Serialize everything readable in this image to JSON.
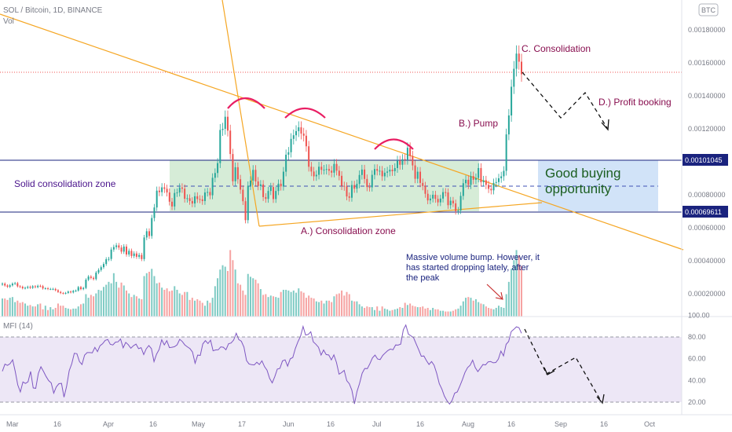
{
  "header": {
    "symbol": "SOL / Bitcoin, 1D, BINANCE",
    "volume_label": "Vol",
    "currency_badge": "BTC"
  },
  "mfi_panel": {
    "label": "MFI (14)"
  },
  "colors": {
    "up": "#26a69a",
    "down": "#ef5350",
    "vol_up": "#7fcbc4",
    "vol_down": "#f6a3a2",
    "zone_fill": "#c8e6c9",
    "buy_fill": "#cfe2f8",
    "trend": "#f5a623",
    "annotation": "#880e4f",
    "level_line": "#1a237e",
    "mfi_line": "#7e57c2",
    "mfi_band": "#ede7f6",
    "arch": "#e91e63"
  },
  "chart_data": [
    {
      "type": "candlestick",
      "series_name": "SOL / Bitcoin",
      "y_axis_ticks": [
        "0.00180000",
        "0.00160000",
        "0.00140000",
        "0.00120000",
        "0.00100000",
        "0.00080000",
        "0.00060000",
        "0.00040000",
        "0.00020000"
      ],
      "y_tick_values": [
        0.0018,
        0.0016,
        0.0014,
        0.0012,
        0.001,
        0.0008,
        0.0006,
        0.0004,
        0.0002
      ],
      "x_axis_ticks": [
        "Mar",
        "16",
        "Apr",
        "16",
        "May",
        "17",
        "Jun",
        "16",
        "Jul",
        "16",
        "Aug",
        "16",
        "Sep",
        "16",
        "Oct"
      ],
      "levels": [
        {
          "label": "0.00101045",
          "value": 0.00101045
        },
        {
          "label": "0.00069611",
          "value": 0.00069611
        }
      ],
      "close_series": [
        0.000262,
        0.000251,
        0.000243,
        0.000252,
        0.000262,
        0.000265,
        0.000246,
        0.000243,
        0.000234,
        0.000237,
        0.000243,
        0.000237,
        0.000246,
        0.000241,
        0.000249,
        0.000247,
        0.000233,
        0.000234,
        0.00023,
        0.00023,
        0.00023,
        0.000222,
        0.000212,
        0.000205,
        0.000203,
        0.000206,
        0.000214,
        0.000209,
        0.000218,
        0.00022,
        0.000241,
        0.000229,
        0.000236,
        0.000286,
        0.000305,
        0.000297,
        0.00029,
        0.000329,
        0.000345,
        0.000362,
        0.000381,
        0.00041,
        0.000412,
        0.000469,
        0.000484,
        0.000494,
        0.000481,
        0.000456,
        0.000487,
        0.000439,
        0.000461,
        0.00043,
        0.000445,
        0.000425,
        0.000436,
        0.000411,
        0.000542,
        0.00058,
        0.000551,
        0.00066,
        0.000724,
        0.000826,
        0.000817,
        0.000846,
        0.000837,
        0.000815,
        0.000759,
        0.00073,
        0.000812,
        0.000815,
        0.000845,
        0.000838,
        0.000777,
        0.00078,
        0.000763,
        0.000748,
        0.000792,
        0.000775,
        0.000773,
        0.000763,
        0.000815,
        0.000818,
        0.000798,
        0.000904,
        0.000933,
        0.000993,
        0.001194,
        0.001201,
        0.001274,
        0.00119,
        0.001048,
        0.000883,
        0.000968,
        0.000895,
        0.000832,
        0.000762,
        0.000647,
        0.000856,
        0.000887,
        0.000952,
        0.000882,
        0.000854,
        0.000864,
        0.000787,
        0.000776,
        0.000824,
        0.000848,
        0.000775,
        0.000824,
        0.000868,
        0.000852,
        0.000941,
        0.001044,
        0.001059,
        0.00114,
        0.001162,
        0.001187,
        0.00121,
        0.001172,
        0.001159,
        0.001095,
        0.000971,
        0.000942,
        0.000913,
        0.000922,
        0.000971,
        0.000952,
        0.000953,
        0.000957,
        0.000947,
        0.000935,
        0.000988,
        0.000947,
        0.000916,
        0.000855,
        0.000851,
        0.000791,
        0.000783,
        0.00086,
        0.000838,
        0.000867,
        0.000921,
        0.000954,
        0.000897,
        0.000848,
        0.000846,
        0.000922,
        0.000957,
        0.000947,
        0.000947,
        0.000913,
        0.000935,
        0.000942,
        0.000953,
        0.000944,
        0.000963,
        0.001007,
        0.000983,
        0.001017,
        0.001014,
        0.001086,
        0.001036,
        0.000979,
        0.000898,
        0.000941,
        0.000873,
        0.000854,
        0.000807,
        0.000767,
        0.000778,
        0.000801,
        0.000776,
        0.000755,
        0.000778,
        0.000817,
        0.000815,
        0.000738,
        0.000765,
        0.000749,
        0.000702,
        0.000706,
        0.000794,
        0.000871,
        0.000892,
        0.000861,
        0.000914,
        0.000892,
        0.000903,
        0.000963,
        0.000877,
        0.000889,
        0.000861,
        0.000837,
        0.000828,
        0.000873,
        0.000878,
        0.000901,
        0.000913,
        0.000946,
        0.001167,
        0.001282,
        0.001456,
        0.001565,
        0.001657,
        0.001608,
        0.001532
      ],
      "volume_relative": [
        0.25,
        0.25,
        0.23,
        0.26,
        0.27,
        0.2,
        0.22,
        0.19,
        0.2,
        0.18,
        0.15,
        0.16,
        0.14,
        0.14,
        0.17,
        0.18,
        0.1,
        0.15,
        0.09,
        0.13,
        0.1,
        0.12,
        0.18,
        0.15,
        0.15,
        0.12,
        0.11,
        0.1,
        0.11,
        0.11,
        0.14,
        0.17,
        0.18,
        0.31,
        0.26,
        0.3,
        0.28,
        0.32,
        0.37,
        0.36,
        0.41,
        0.44,
        0.48,
        0.46,
        0.6,
        0.48,
        0.4,
        0.47,
        0.43,
        0.36,
        0.32,
        0.27,
        0.3,
        0.28,
        0.25,
        0.24,
        0.56,
        0.6,
        0.62,
        0.66,
        0.56,
        0.46,
        0.47,
        0.4,
        0.37,
        0.39,
        0.35,
        0.36,
        0.42,
        0.37,
        0.32,
        0.3,
        0.34,
        0.34,
        0.23,
        0.26,
        0.22,
        0.24,
        0.22,
        0.19,
        0.15,
        0.22,
        0.19,
        0.26,
        0.42,
        0.53,
        0.65,
        0.71,
        0.69,
        0.63,
        0.92,
        0.78,
        0.65,
        0.46,
        0.44,
        0.36,
        0.3,
        0.59,
        0.55,
        0.53,
        0.51,
        0.46,
        0.38,
        0.3,
        0.31,
        0.27,
        0.29,
        0.28,
        0.27,
        0.26,
        0.34,
        0.37,
        0.37,
        0.36,
        0.34,
        0.36,
        0.33,
        0.39,
        0.35,
        0.33,
        0.26,
        0.29,
        0.26,
        0.25,
        0.21,
        0.2,
        0.22,
        0.18,
        0.22,
        0.22,
        0.2,
        0.28,
        0.31,
        0.32,
        0.36,
        0.29,
        0.34,
        0.31,
        0.22,
        0.21,
        0.21,
        0.17,
        0.14,
        0.12,
        0.14,
        0.13,
        0.13,
        0.09,
        0.14,
        0.08,
        0.14,
        0.11,
        0.1,
        0.08,
        0.09,
        0.1,
        0.11,
        0.13,
        0.12,
        0.19,
        0.16,
        0.18,
        0.15,
        0.14,
        0.13,
        0.13,
        0.14,
        0.11,
        0.12,
        0.09,
        0.12,
        0.1,
        0.1,
        0.08,
        0.08,
        0.07,
        0.07,
        0.07,
        0.08,
        0.1,
        0.11,
        0.15,
        0.21,
        0.26,
        0.27,
        0.26,
        0.22,
        0.24,
        0.2,
        0.18,
        0.17,
        0.14,
        0.12,
        0.11,
        0.1,
        0.12,
        0.15,
        0.13,
        0.12,
        0.31,
        0.48,
        0.66,
        0.78,
        0.92,
        0.85,
        0.7
      ],
      "mfi_ticks": [
        "100.00",
        "80.00",
        "60.00",
        "40.00",
        "20.00"
      ],
      "mfi_tick_values": [
        100,
        80,
        60,
        40,
        20
      ],
      "mfi_series": [
        48.4,
        55.0,
        53.8,
        55.4,
        59.0,
        48.3,
        35.9,
        29.4,
        38.6,
        37.2,
        38.7,
        48.3,
        33.1,
        32.7,
        46.4,
        52.6,
        48.3,
        43.7,
        39.9,
        37.7,
        28.3,
        34.1,
        37.0,
        37.3,
        24.6,
        34.5,
        48.9,
        55.4,
        65.0,
        64.6,
        57.3,
        54.6,
        63.3,
        65.6,
        65.6,
        65.4,
        70.4,
        66.5,
        71.9,
        73.7,
        76.8,
        77.7,
        73.3,
        72.6,
        75.2,
        75.5,
        78.1,
        70.0,
        75.0,
        72.9,
        69.6,
        71.9,
        73.4,
        69.2,
        70.2,
        63.8,
        69.1,
        72.1,
        69.2,
        57.3,
        64.1,
        68.4,
        77.5,
        72.7,
        76.5,
        70.2,
        70.5,
        71.0,
        72.8,
        77.8,
        75.8,
        72.7,
        70.9,
        69.2,
        66.1,
        55.8,
        63.3,
        63.0,
        73.6,
        76.6,
        73.9,
        77.0,
        67.3,
        68.1,
        68.2,
        70.9,
        70.5,
        68.2,
        73.7,
        74.4,
        77.2,
        83.4,
        77.6,
        76.0,
        70.7,
        58.3,
        55.1,
        54.5,
        54.3,
        56.7,
        54.6,
        58.0,
        52.7,
        49.4,
        41.8,
        37.7,
        43.6,
        50.4,
        51.1,
        58.0,
        59.0,
        53.1,
        59.8,
        61.1,
        69.3,
        75.5,
        80.5,
        89.7,
        81.8,
        82.3,
        84.8,
        75.5,
        73.3,
        70.5,
        63.3,
        68.0,
        63.8,
        63.4,
        58.9,
        63.5,
        56.5,
        45.8,
        47.2,
        49.3,
        39.7,
        36.9,
        31.0,
        18.5,
        30.0,
        37.3,
        46.6,
        51.0,
        50.9,
        55.3,
        60.7,
        63.3,
        59.7,
        59.2,
        63.0,
        65.4,
        67.5,
        68.9,
        68.2,
        72.6,
        72.5,
        73.4,
        86.6,
        91.0,
        82.6,
        81.0,
        79.3,
        73.7,
        68.2,
        62.2,
        62.5,
        58.3,
        54.7,
        57.4,
        54.0,
        46.6,
        37.0,
        32.1,
        25.6,
        21.3,
        18.3,
        21.6,
        28.3,
        29.4,
        34.9,
        40.7,
        47.3,
        51.8,
        54.0,
        58.7,
        51.8,
        48.1,
        51.2,
        54.6,
        54.3,
        57.1,
        57.4,
        56.2,
        56.5,
        59.6,
        67.0,
        62.6,
        73.2,
        75.9,
        85.0,
        87.0,
        89.3,
        88.6,
        83.4
      ]
    }
  ],
  "annotations": {
    "solid_zone": "Solid consolidation zone",
    "consolidation_zone": "A.)  Consolidation zone",
    "pump": "B.) Pump",
    "consolidation": "C. Consolidation",
    "profit_booking": "D.) Profit booking",
    "buying_line1": "Good buying",
    "buying_line2": "opportunity",
    "volume_note_1": "Massive volume bump. However, it",
    "volume_note_2": "has started dropping lately, after",
    "volume_note_3": "the peak"
  }
}
